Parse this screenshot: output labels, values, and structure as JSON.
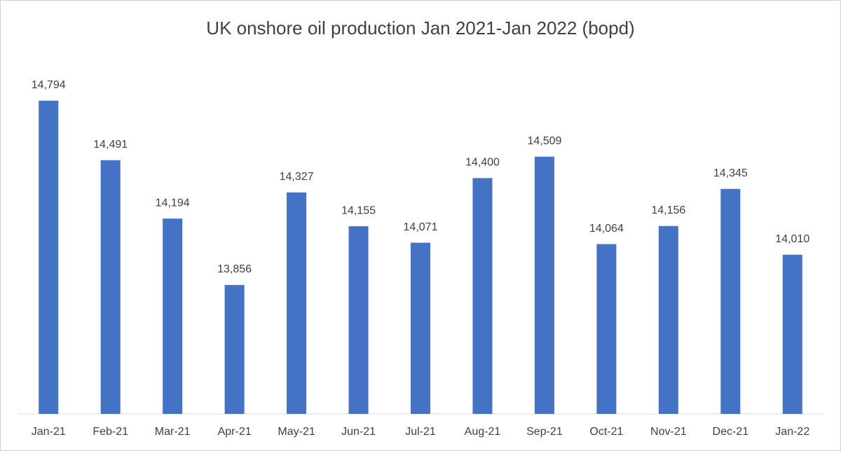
{
  "chart_data": {
    "type": "bar",
    "title": "UK onshore oil production Jan 2021-Jan 2022 (bopd)",
    "categories": [
      "Jan-21",
      "Feb-21",
      "Mar-21",
      "Apr-21",
      "May-21",
      "Jun-21",
      "Jul-21",
      "Aug-21",
      "Sep-21",
      "Oct-21",
      "Nov-21",
      "Dec-21",
      "Jan-22"
    ],
    "values": [
      14794,
      14491,
      14194,
      13856,
      14327,
      14155,
      14071,
      14400,
      14509,
      14064,
      14156,
      14345,
      14010
    ],
    "value_labels": [
      "14,794",
      "14,491",
      "14,194",
      "13,856",
      "14,327",
      "14,155",
      "14,071",
      "14,400",
      "14,509",
      "14,064",
      "14,156",
      "14,345",
      "14,010"
    ],
    "color": "#4472c4",
    "ylim": [
      13200,
      14900
    ]
  }
}
